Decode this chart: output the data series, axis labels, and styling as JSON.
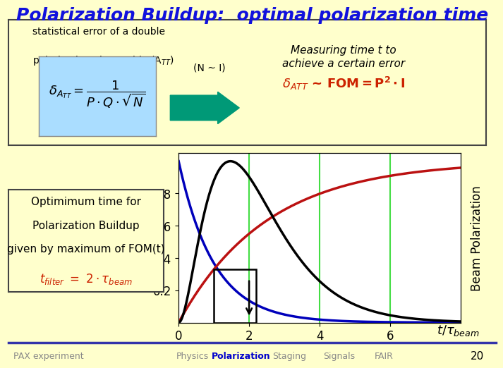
{
  "title": "Polarization Buildup:  optimal polarization time",
  "title_color": "#1111DD",
  "bg_color": "#FFFFCC",
  "plot_bg": "#FFFFFF",
  "grid_color": "#44DD44",
  "line_blue_color": "#0000BB",
  "line_red_color": "#BB1111",
  "line_black_color": "#000000",
  "arrow_color": "#009977",
  "formula_box_color": "#AADDFF",
  "xlim": [
    0,
    8
  ],
  "ylim": [
    0,
    1.05
  ],
  "xticks": [
    0,
    2,
    4,
    6
  ],
  "yticks": [
    0.2,
    0.4,
    0.6,
    0.8
  ],
  "stat_text1": "statistical error of a double",
  "stat_text2": "polarization observable (A",
  "meas_text1": "Measuring time t to",
  "meas_text2": "achieve a certain error",
  "opt_text1": "Optimimum time for",
  "opt_text2": "Polarization Buildup",
  "opt_text3": "given by maximum of FOM(t)",
  "footer_left": "PAX experiment",
  "footer_physics": "Physics",
  "footer_polarization": "Polarization",
  "footer_staging": "Staging",
  "footer_signals": "Signals",
  "footer_fair": "FAIR",
  "footer_number": "20"
}
